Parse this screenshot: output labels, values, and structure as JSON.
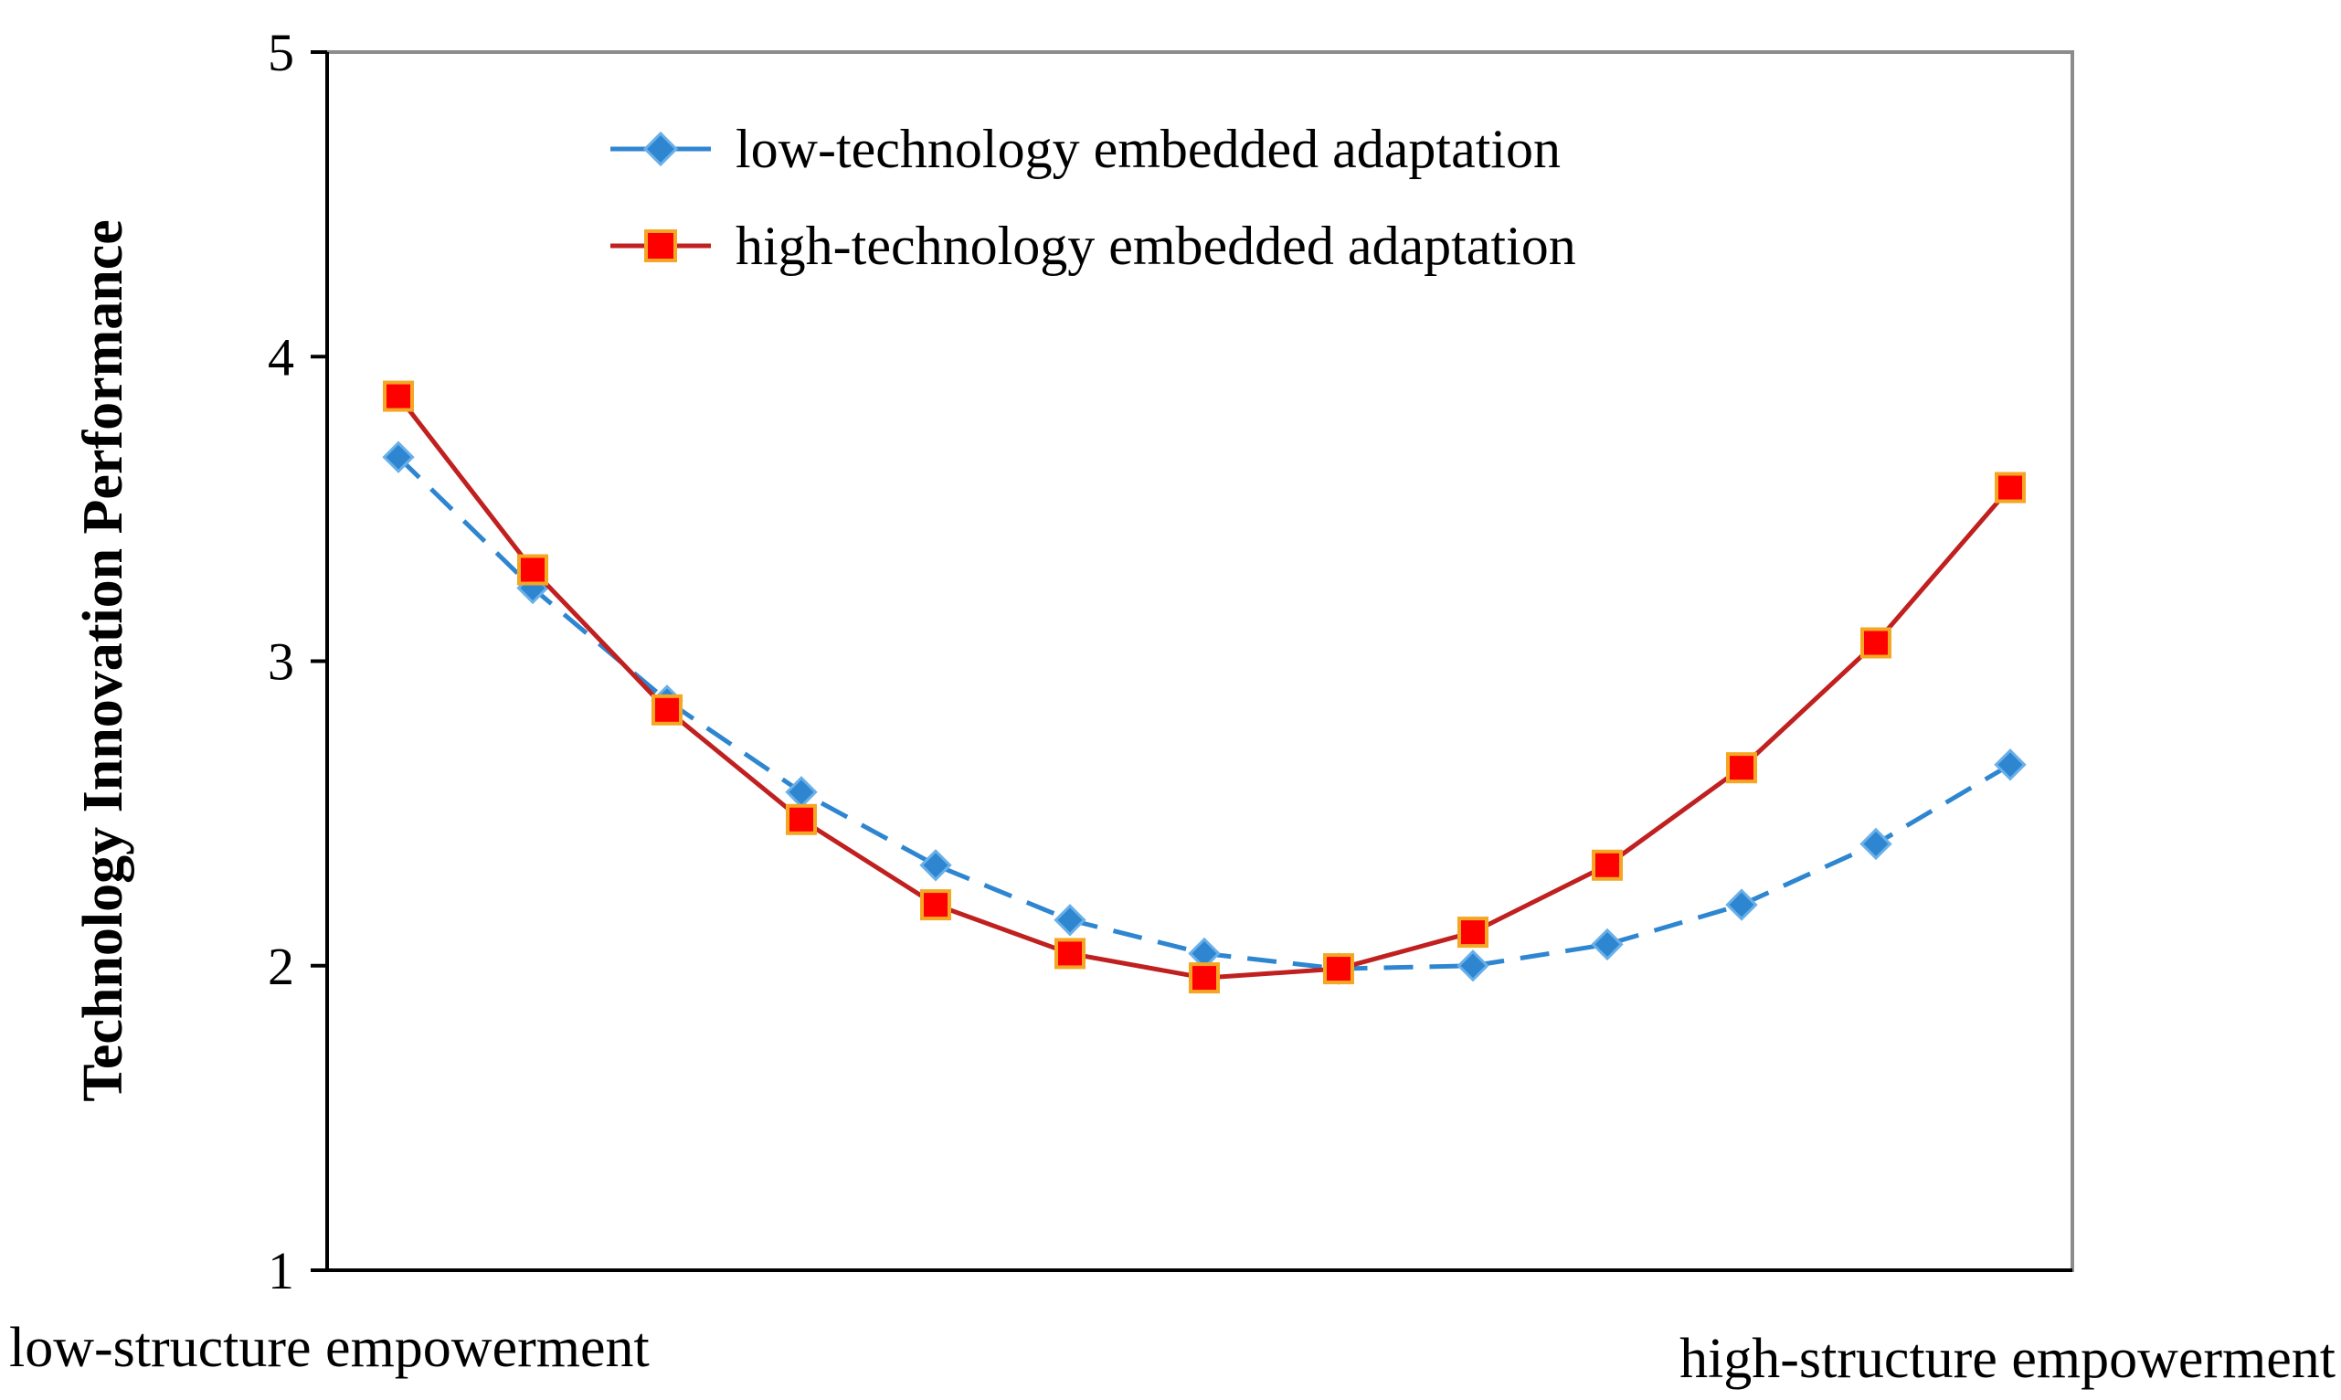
{
  "chart_data": {
    "type": "line",
    "title": "",
    "ylabel": "Technology Innovation Performance",
    "xlabel": "",
    "x_left_label": "low-structure empowerment",
    "x_right_label": "high-structure empowerment",
    "ylim": [
      1,
      5
    ],
    "yticks": [
      "1",
      "2",
      "3",
      "4",
      "5"
    ],
    "x": [
      1,
      2,
      3,
      4,
      5,
      6,
      7,
      8,
      9,
      10,
      11,
      12,
      13
    ],
    "grid": false,
    "legend_position": "top-center",
    "series": [
      {
        "name": "low-technology embedded adaptation",
        "color": "#2E86D1",
        "marker": "diamond",
        "line_style": "dashed",
        "values": [
          3.67,
          3.24,
          2.87,
          2.57,
          2.33,
          2.15,
          2.04,
          1.99,
          2.0,
          2.07,
          2.2,
          2.4,
          2.66
        ]
      },
      {
        "name": "high-technology embedded adaptation",
        "color": "#C0201F",
        "marker_fill": "#FF0000",
        "marker_edge": "#F5A623",
        "marker": "square",
        "line_style": "solid",
        "values": [
          3.87,
          3.3,
          2.84,
          2.48,
          2.2,
          2.04,
          1.96,
          1.99,
          2.11,
          2.33,
          2.65,
          3.06,
          3.57
        ]
      }
    ]
  }
}
